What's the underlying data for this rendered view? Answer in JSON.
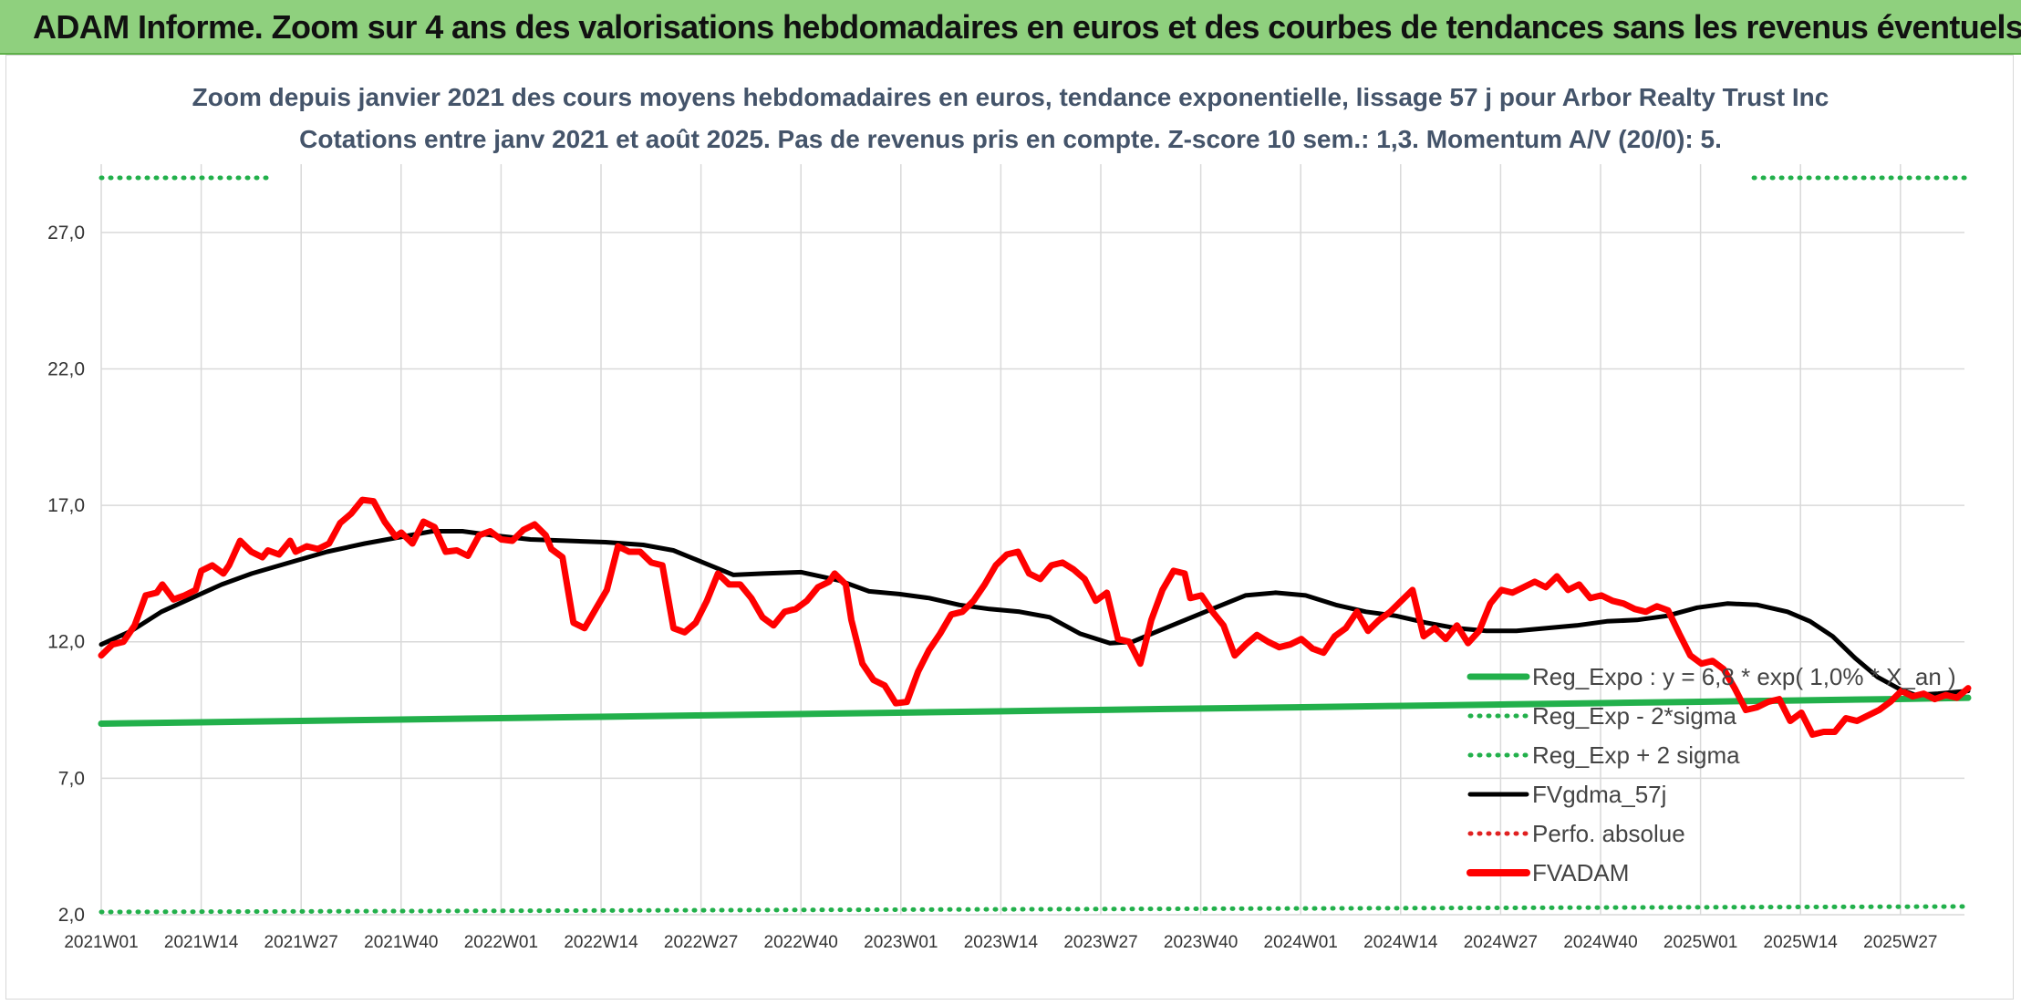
{
  "banner": {
    "title": "ADAM Informe. Zoom sur 4 ans des valorisations hebdomadaires en euros et des courbes de tendances sans les revenus éventuels"
  },
  "colors": {
    "banner_bg": "#8fd07e",
    "reg_expo": "#22b04b",
    "sigma": "#22b04b",
    "fvgdma": "#000000",
    "perfo": "#e02020",
    "fvadam": "#ff0000",
    "grid": "#d9d9d9"
  },
  "chart_data": {
    "type": "line",
    "title": "Zoom depuis janvier 2021 des cours moyens hebdomadaires en euros, tendance exponentielle, lissage 57 j pour Arbor Realty Trust Inc",
    "subtitle": "Cotations entre janv 2021 et août 2025. Pas de revenus pris en compte. Z-score 10 sem.: 1,3. Momentum A/V (20/0): 5.",
    "ylim": [
      2.0,
      29.5
    ],
    "yticks": [
      2.0,
      7.0,
      12.0,
      17.0,
      22.0,
      27.0
    ],
    "ytick_labels": [
      "2,0",
      "7,0",
      "12,0",
      "17,0",
      "22,0",
      "27,0"
    ],
    "xtick_labels": [
      "2021W01",
      "2021W14",
      "2021W27",
      "2021W40",
      "2022W01",
      "2022W14",
      "2022W27",
      "2022W40",
      "2023W01",
      "2023W14",
      "2023W27",
      "2023W40",
      "2024W01",
      "2024W14",
      "2024W27",
      "2024W40",
      "2025W01",
      "2025W14",
      "2025W27"
    ],
    "grid": true,
    "legend_position": "bottom-right",
    "series": [
      {
        "name": "Reg_Expo : y = 6,8 * exp( 1,0% * X_an )",
        "style": "solid-thick",
        "key": "reg_expo",
        "points": [
          [
            0,
            9.0
          ],
          [
            13,
            9.05
          ],
          [
            26,
            9.1
          ],
          [
            39,
            9.15
          ],
          [
            52,
            9.2
          ],
          [
            65,
            9.25
          ],
          [
            78,
            9.3
          ],
          [
            91,
            9.35
          ],
          [
            104,
            9.4
          ],
          [
            117,
            9.45
          ],
          [
            130,
            9.5
          ],
          [
            143,
            9.55
          ],
          [
            156,
            9.6
          ],
          [
            169,
            9.65
          ],
          [
            182,
            9.7
          ],
          [
            195,
            9.75
          ],
          [
            208,
            9.8
          ],
          [
            221,
            9.85
          ],
          [
            234,
            9.9
          ],
          [
            244,
            9.95
          ]
        ]
      },
      {
        "name": "Reg_Exp - 2*sigma",
        "style": "dotted",
        "key": "sigma",
        "points": [
          [
            0,
            2.1
          ],
          [
            244,
            2.3
          ]
        ]
      },
      {
        "name": "Reg_Exp + 2 sigma",
        "style": "dotted",
        "key": "sigma",
        "points": [
          [
            0,
            29.0
          ],
          [
            22,
            29.0
          ]
        ],
        "points_b": [
          [
            216,
            29.0
          ],
          [
            244,
            29.0
          ]
        ]
      },
      {
        "name": "FVgdma_57j",
        "style": "solid",
        "key": "fvgdma",
        "points": [
          [
            0,
            11.9
          ],
          [
            4,
            12.4
          ],
          [
            8,
            13.1
          ],
          [
            12,
            13.6
          ],
          [
            16,
            14.1
          ],
          [
            20,
            14.5
          ],
          [
            25,
            14.9
          ],
          [
            30,
            15.3
          ],
          [
            35,
            15.6
          ],
          [
            40,
            15.85
          ],
          [
            44,
            16.05
          ],
          [
            48,
            16.05
          ],
          [
            52,
            15.9
          ],
          [
            57,
            15.75
          ],
          [
            62,
            15.7
          ],
          [
            67,
            15.65
          ],
          [
            72,
            15.55
          ],
          [
            76,
            15.35
          ],
          [
            80,
            14.9
          ],
          [
            84,
            14.45
          ],
          [
            88,
            14.5
          ],
          [
            93,
            14.55
          ],
          [
            98,
            14.25
          ],
          [
            102,
            13.85
          ],
          [
            106,
            13.75
          ],
          [
            110,
            13.6
          ],
          [
            114,
            13.35
          ],
          [
            118,
            13.2
          ],
          [
            122,
            13.1
          ],
          [
            126,
            12.9
          ],
          [
            130,
            12.3
          ],
          [
            134,
            11.95
          ],
          [
            137,
            12.0
          ],
          [
            140,
            12.35
          ],
          [
            144,
            12.8
          ],
          [
            148,
            13.25
          ],
          [
            152,
            13.7
          ],
          [
            156,
            13.8
          ],
          [
            160,
            13.7
          ],
          [
            164,
            13.35
          ],
          [
            168,
            13.1
          ],
          [
            172,
            12.95
          ],
          [
            176,
            12.7
          ],
          [
            180,
            12.5
          ],
          [
            184,
            12.4
          ],
          [
            188,
            12.4
          ],
          [
            192,
            12.5
          ],
          [
            196,
            12.6
          ],
          [
            200,
            12.75
          ],
          [
            204,
            12.8
          ],
          [
            208,
            12.95
          ],
          [
            212,
            13.25
          ],
          [
            216,
            13.4
          ],
          [
            220,
            13.35
          ],
          [
            224,
            13.1
          ],
          [
            227,
            12.75
          ],
          [
            230,
            12.2
          ],
          [
            233,
            11.4
          ],
          [
            236,
            10.7
          ],
          [
            239,
            10.25
          ],
          [
            241,
            10.05
          ],
          [
            244,
            10.1
          ],
          [
            248,
            10.2
          ]
        ]
      },
      {
        "name": "Perfo. absolue",
        "style": "dotted",
        "key": "perfo",
        "points": []
      },
      {
        "name": "FVADAM",
        "style": "solid-thick",
        "key": "fvadam",
        "points": [
          [
            0,
            11.5
          ],
          [
            2,
            11.9
          ],
          [
            4,
            12.0
          ],
          [
            6,
            12.6
          ],
          [
            8,
            13.7
          ],
          [
            10,
            13.8
          ],
          [
            11,
            14.1
          ],
          [
            13,
            13.55
          ],
          [
            15,
            13.7
          ],
          [
            17,
            13.9
          ],
          [
            18,
            14.6
          ],
          [
            20,
            14.8
          ],
          [
            22,
            14.5
          ],
          [
            23,
            14.8
          ],
          [
            25,
            15.7
          ],
          [
            27,
            15.3
          ],
          [
            29,
            15.1
          ],
          [
            30,
            15.35
          ],
          [
            32,
            15.2
          ],
          [
            34,
            15.7
          ],
          [
            35,
            15.3
          ],
          [
            37,
            15.5
          ],
          [
            39,
            15.4
          ],
          [
            41,
            15.6
          ],
          [
            43,
            16.35
          ],
          [
            45,
            16.7
          ],
          [
            47,
            17.2
          ],
          [
            49,
            17.15
          ],
          [
            51,
            16.4
          ],
          [
            53,
            15.85
          ],
          [
            54,
            16.0
          ],
          [
            56,
            15.6
          ],
          [
            58,
            16.4
          ],
          [
            60,
            16.2
          ],
          [
            62,
            15.3
          ],
          [
            64,
            15.35
          ],
          [
            66,
            15.15
          ],
          [
            68,
            15.9
          ],
          [
            70,
            16.05
          ],
          [
            72,
            15.75
          ],
          [
            74,
            15.7
          ],
          [
            76,
            16.1
          ],
          [
            78,
            16.3
          ],
          [
            80,
            15.9
          ],
          [
            81,
            15.4
          ],
          [
            83,
            15.1
          ],
          [
            85,
            12.7
          ],
          [
            87,
            12.5
          ],
          [
            89,
            13.2
          ],
          [
            91,
            13.9
          ],
          [
            93,
            15.5
          ],
          [
            95,
            15.3
          ],
          [
            97,
            15.3
          ],
          [
            99,
            14.9
          ],
          [
            101,
            14.8
          ],
          [
            103,
            12.5
          ],
          [
            105,
            12.35
          ],
          [
            107,
            12.7
          ],
          [
            109,
            13.5
          ],
          [
            111,
            14.5
          ],
          [
            113,
            14.1
          ],
          [
            115,
            14.1
          ],
          [
            117,
            13.6
          ],
          [
            119,
            12.9
          ],
          [
            121,
            12.6
          ],
          [
            123,
            13.1
          ],
          [
            125,
            13.2
          ],
          [
            127,
            13.5
          ],
          [
            129,
            14.0
          ],
          [
            131,
            14.2
          ],
          [
            132,
            14.5
          ],
          [
            134,
            14.1
          ],
          [
            135,
            12.8
          ],
          [
            137,
            11.2
          ],
          [
            139,
            10.6
          ],
          [
            141,
            10.4
          ],
          [
            143,
            9.75
          ],
          [
            145,
            9.8
          ],
          [
            147,
            10.9
          ],
          [
            149,
            11.7
          ],
          [
            151,
            12.3
          ],
          [
            153,
            13.0
          ],
          [
            155,
            13.1
          ],
          [
            157,
            13.5
          ],
          [
            159,
            14.1
          ],
          [
            161,
            14.8
          ],
          [
            163,
            15.2
          ],
          [
            165,
            15.3
          ],
          [
            167,
            14.5
          ],
          [
            169,
            14.3
          ],
          [
            171,
            14.8
          ],
          [
            173,
            14.9
          ],
          [
            175,
            14.65
          ],
          [
            177,
            14.3
          ],
          [
            179,
            13.5
          ],
          [
            181,
            13.8
          ],
          [
            183,
            12.1
          ],
          [
            185,
            12.0
          ],
          [
            187,
            11.2
          ],
          [
            189,
            12.8
          ],
          [
            191,
            13.9
          ],
          [
            193,
            14.6
          ],
          [
            195,
            14.5
          ],
          [
            196,
            13.6
          ],
          [
            198,
            13.7
          ],
          [
            200,
            13.1
          ],
          [
            202,
            12.6
          ],
          [
            204,
            11.5
          ],
          [
            206,
            11.9
          ],
          [
            208,
            12.25
          ],
          [
            210,
            12.0
          ],
          [
            212,
            11.8
          ],
          [
            214,
            11.9
          ],
          [
            216,
            12.1
          ],
          [
            218,
            11.75
          ],
          [
            220,
            11.6
          ],
          [
            222,
            12.2
          ],
          [
            224,
            12.5
          ],
          [
            226,
            13.1
          ],
          [
            228,
            12.4
          ],
          [
            230,
            12.8
          ],
          [
            232,
            13.1
          ],
          [
            234,
            13.5
          ],
          [
            236,
            13.9
          ],
          [
            238,
            12.2
          ],
          [
            240,
            12.5
          ],
          [
            242,
            12.1
          ],
          [
            244,
            12.6
          ],
          [
            246,
            11.95
          ],
          [
            248,
            12.4
          ],
          [
            250,
            13.4
          ],
          [
            252,
            13.9
          ],
          [
            254,
            13.8
          ],
          [
            256,
            14.0
          ],
          [
            258,
            14.2
          ],
          [
            260,
            14.0
          ],
          [
            262,
            14.4
          ],
          [
            264,
            13.9
          ],
          [
            266,
            14.1
          ],
          [
            268,
            13.6
          ],
          [
            270,
            13.7
          ],
          [
            272,
            13.5
          ],
          [
            274,
            13.4
          ],
          [
            276,
            13.2
          ],
          [
            278,
            13.1
          ],
          [
            280,
            13.3
          ],
          [
            282,
            13.15
          ],
          [
            284,
            12.3
          ],
          [
            286,
            11.5
          ],
          [
            288,
            11.2
          ],
          [
            290,
            11.3
          ],
          [
            292,
            11.0
          ],
          [
            294,
            10.3
          ],
          [
            296,
            9.5
          ],
          [
            298,
            9.6
          ],
          [
            300,
            9.8
          ],
          [
            302,
            9.9
          ],
          [
            304,
            9.1
          ],
          [
            306,
            9.4
          ],
          [
            308,
            8.6
          ],
          [
            310,
            8.7
          ],
          [
            312,
            8.7
          ],
          [
            314,
            9.2
          ],
          [
            316,
            9.1
          ],
          [
            318,
            9.3
          ],
          [
            320,
            9.5
          ],
          [
            322,
            9.8
          ],
          [
            324,
            10.2
          ],
          [
            326,
            10.0
          ],
          [
            328,
            10.1
          ],
          [
            330,
            9.9
          ],
          [
            332,
            10.05
          ],
          [
            334,
            9.95
          ],
          [
            336,
            10.3
          ]
        ]
      }
    ]
  }
}
